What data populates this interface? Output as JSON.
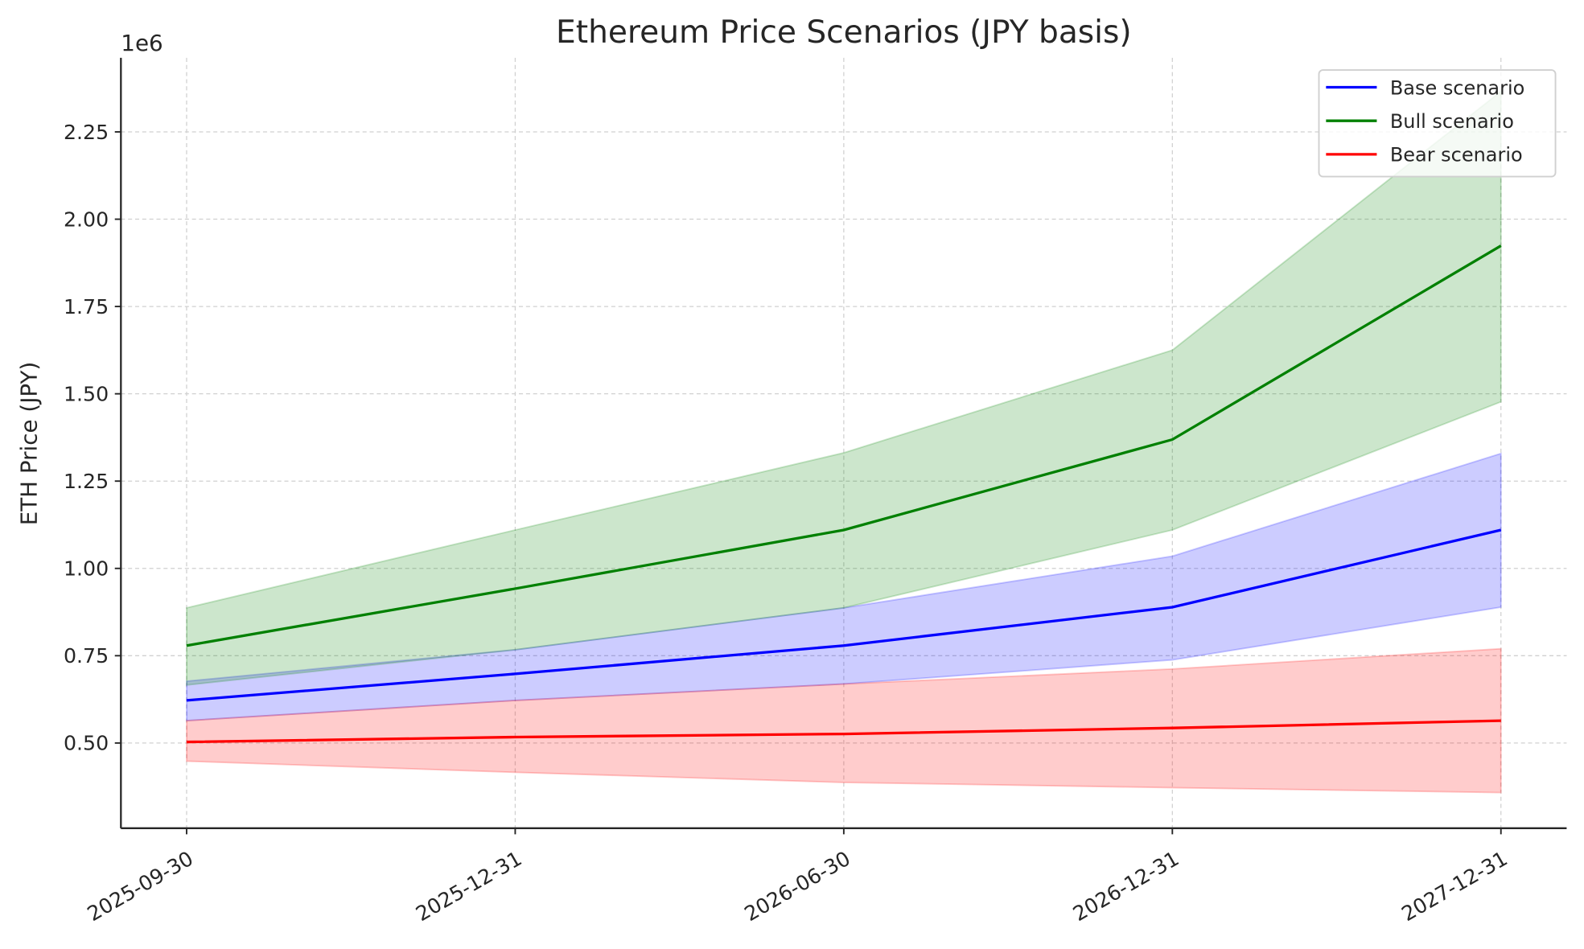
{
  "chart_data": {
    "type": "line",
    "title": "Ethereum Price Scenarios (JPY basis)",
    "xlabel": "",
    "ylabel": "ETH Price (JPY)",
    "y_offset_label": "1e6",
    "categories": [
      "2025-09-30",
      "2025-12-31",
      "2026-06-30",
      "2026-12-31",
      "2027-12-31"
    ],
    "ylim": [
      256000,
      2462000
    ],
    "yticks": [
      500000,
      750000,
      1000000,
      1250000,
      1500000,
      1750000,
      2000000,
      2250000
    ],
    "ytick_labels": [
      "0.50",
      "0.75",
      "1.00",
      "1.25",
      "1.50",
      "1.75",
      "2.00",
      "2.25"
    ],
    "grid": true,
    "legend_position": "top-right",
    "series": [
      {
        "name": "Base scenario",
        "color": "#0000ff",
        "values": [
          622000,
          698000,
          779000,
          889000,
          1110000
        ],
        "band_upper": [
          677000,
          767000,
          887000,
          1035000,
          1329000
        ],
        "band_lower": [
          564000,
          622000,
          669000,
          738000,
          889000
        ]
      },
      {
        "name": "Bull scenario",
        "color": "#008000",
        "values": [
          779000,
          942000,
          1110000,
          1369000,
          1924000
        ],
        "band_upper": [
          887000,
          1110000,
          1331000,
          1625000,
          2366000
        ],
        "band_lower": [
          666000,
          767000,
          887000,
          1110000,
          1477000
        ]
      },
      {
        "name": "Bear scenario",
        "color": "#ff0000",
        "values": [
          503000,
          517000,
          526000,
          543000,
          564000
        ],
        "band_upper": [
          564000,
          622000,
          669000,
          712000,
          770000
        ],
        "band_lower": [
          448000,
          416000,
          387000,
          372000,
          358000
        ]
      }
    ]
  }
}
